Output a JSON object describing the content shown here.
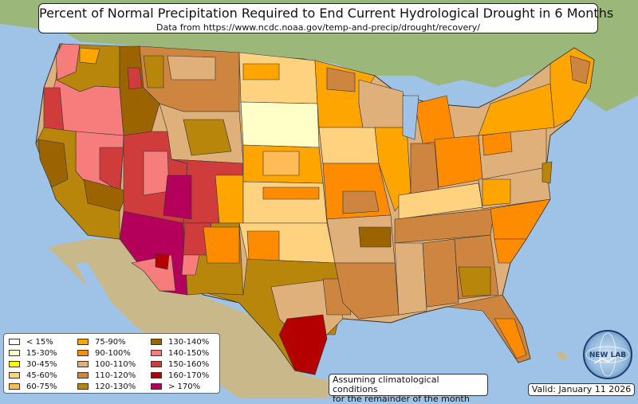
{
  "title": "Percent of Normal Precipitation Required to End Current Hydrological Drought in 6 Months",
  "subtitle": "Data from https://www.ncdc.noaa.gov/temp-and-precip/drought/recovery/",
  "legend": {
    "col1": [
      {
        "label": "< 15%",
        "color": "#ffffff"
      },
      {
        "label": "15-30%",
        "color": "#ffffc8"
      },
      {
        "label": "30-45%",
        "color": "#ffff00"
      },
      {
        "label": "45-60%",
        "color": "#ffd27f"
      },
      {
        "label": "60-75%",
        "color": "#ffbb55"
      }
    ],
    "col2": [
      {
        "label": "75-90%",
        "color": "#ffa500"
      },
      {
        "label": "90-100%",
        "color": "#ff8c00"
      },
      {
        "label": "100-110%",
        "color": "#dfb07a"
      },
      {
        "label": "110-120%",
        "color": "#cd853f"
      },
      {
        "label": "120-130%",
        "color": "#b8860b"
      }
    ],
    "col3": [
      {
        "label": "130-140%",
        "color": "#9c6400"
      },
      {
        "label": "140-150%",
        "color": "#f77c7c"
      },
      {
        "label": "150-160%",
        "color": "#d03c3c"
      },
      {
        "label": "160-170%",
        "color": "#b40000"
      },
      {
        "label": "> 170%",
        "color": "#b4005a"
      }
    ]
  },
  "note_line1": "Assuming climatological conditions",
  "note_line2": "for the remainder of the month",
  "valid": "Valid: January 11 2026",
  "logo_text": "NEW LAB",
  "colors": {
    "ocean": "#9ec3e6",
    "land": "#c8d4a8",
    "border": "#333333"
  }
}
